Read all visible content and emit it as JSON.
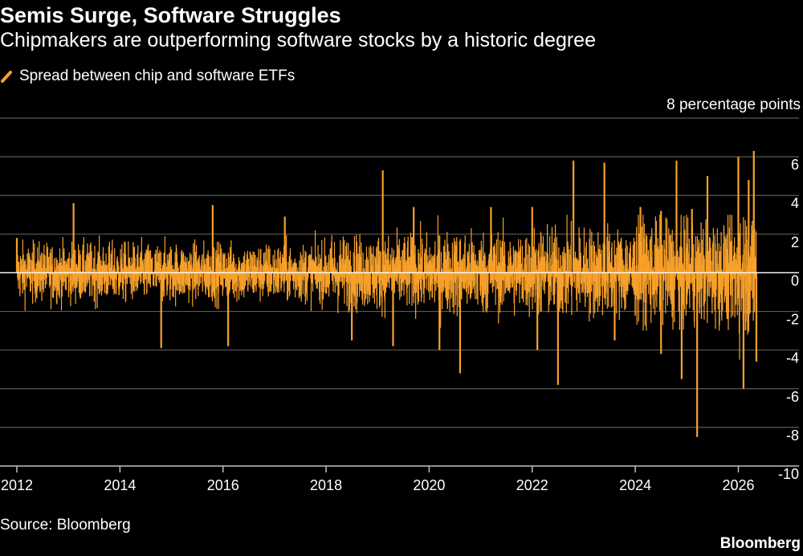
{
  "header": {
    "title": "Semis Surge, Software Struggles",
    "subtitle": "Chipmakers are outperforming software stocks by a historic degree"
  },
  "legend": {
    "label": "Spread between chip and software ETFs"
  },
  "footer": {
    "source": "Source: Bloomberg",
    "brand": "Bloomberg"
  },
  "colors": {
    "series": "#f7a12b",
    "background": "#000000",
    "grid": "#5a5a5a",
    "text": "#ffffff"
  },
  "chart_data": {
    "type": "bar",
    "title": "Semis Surge, Software Struggles",
    "subtitle": "Chipmakers are outperforming software stocks by a historic degree",
    "unit_label": "8 percentage points",
    "ylim": [
      -10,
      8
    ],
    "y_ticks": [
      8,
      6,
      4,
      2,
      0,
      -2,
      -4,
      -6,
      -8,
      -10
    ],
    "y_tick_labels": [
      "8 percentage points",
      "6",
      "4",
      "2",
      "0",
      "-2",
      "-4",
      "-6",
      "-8",
      "-10"
    ],
    "xlim": [
      2012,
      2026.6
    ],
    "x_ticks": [
      2012,
      2014,
      2016,
      2018,
      2020,
      2022,
      2024,
      2026
    ],
    "x_tick_labels": [
      "2012",
      "2014",
      "2016",
      "2018",
      "2020",
      "2022",
      "2024",
      "2026"
    ],
    "grid": true,
    "legend_position": "top-left",
    "series": [
      {
        "name": "Spread between chip and software ETFs",
        "frequency": "daily",
        "x_start": 2012.0,
        "x_end": 2026.35,
        "notable_points": [
          {
            "x": 2012.0,
            "y": 1.8
          },
          {
            "x": 2013.1,
            "y": 3.6
          },
          {
            "x": 2014.8,
            "y": -3.9
          },
          {
            "x": 2015.8,
            "y": 3.5
          },
          {
            "x": 2016.1,
            "y": -3.8
          },
          {
            "x": 2017.2,
            "y": 2.9
          },
          {
            "x": 2018.5,
            "y": -3.5
          },
          {
            "x": 2019.1,
            "y": 5.3
          },
          {
            "x": 2019.3,
            "y": -3.8
          },
          {
            "x": 2019.7,
            "y": 3.4
          },
          {
            "x": 2020.2,
            "y": -4.0
          },
          {
            "x": 2020.6,
            "y": -5.2
          },
          {
            "x": 2021.2,
            "y": 3.4
          },
          {
            "x": 2022.0,
            "y": 3.4
          },
          {
            "x": 2022.1,
            "y": -4.0
          },
          {
            "x": 2022.5,
            "y": -5.8
          },
          {
            "x": 2022.8,
            "y": 5.8
          },
          {
            "x": 2023.4,
            "y": 5.7
          },
          {
            "x": 2023.6,
            "y": -3.5
          },
          {
            "x": 2024.1,
            "y": 3.4
          },
          {
            "x": 2024.5,
            "y": 3.2
          },
          {
            "x": 2024.5,
            "y": -4.2
          },
          {
            "x": 2024.8,
            "y": 5.8
          },
          {
            "x": 2024.9,
            "y": -5.5
          },
          {
            "x": 2025.1,
            "y": 3.3
          },
          {
            "x": 2025.2,
            "y": -8.5
          },
          {
            "x": 2025.4,
            "y": 5.0
          },
          {
            "x": 2025.8,
            "y": -2.4
          },
          {
            "x": 2026.0,
            "y": 6.0
          },
          {
            "x": 2026.1,
            "y": -6.0
          },
          {
            "x": 2026.2,
            "y": 4.8
          },
          {
            "x": 2026.3,
            "y": 6.3
          },
          {
            "x": 2026.35,
            "y": -4.6
          }
        ]
      }
    ]
  }
}
